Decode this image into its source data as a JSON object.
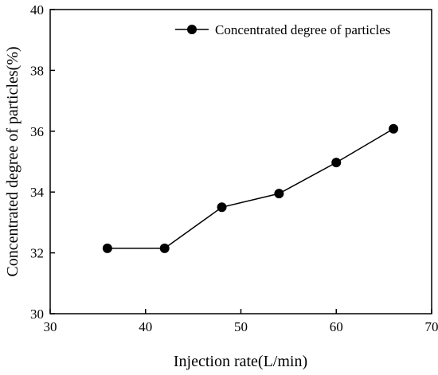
{
  "chart_data": {
    "type": "line",
    "title": "",
    "xlabel": "Injection rate(L/min)",
    "ylabel": "Concentrated degree of particles(%)",
    "xlim": [
      30,
      70
    ],
    "ylim": [
      30,
      40
    ],
    "xticks": [
      30,
      40,
      50,
      60,
      70
    ],
    "yticks": [
      30,
      32,
      34,
      36,
      38,
      40
    ],
    "xtick_labels": [
      "30",
      "40",
      "50",
      "60",
      "70"
    ],
    "ytick_labels": [
      "30",
      "32",
      "34",
      "36",
      "38",
      "40"
    ],
    "grid": false,
    "legend_position": "top-right",
    "series": [
      {
        "name": "Concentrated degree of particles",
        "color": "#000000",
        "marker": "circle",
        "x": [
          36,
          42,
          48,
          54,
          60,
          66
        ],
        "y": [
          32.15,
          32.15,
          33.5,
          33.95,
          34.97,
          36.08
        ]
      }
    ]
  }
}
